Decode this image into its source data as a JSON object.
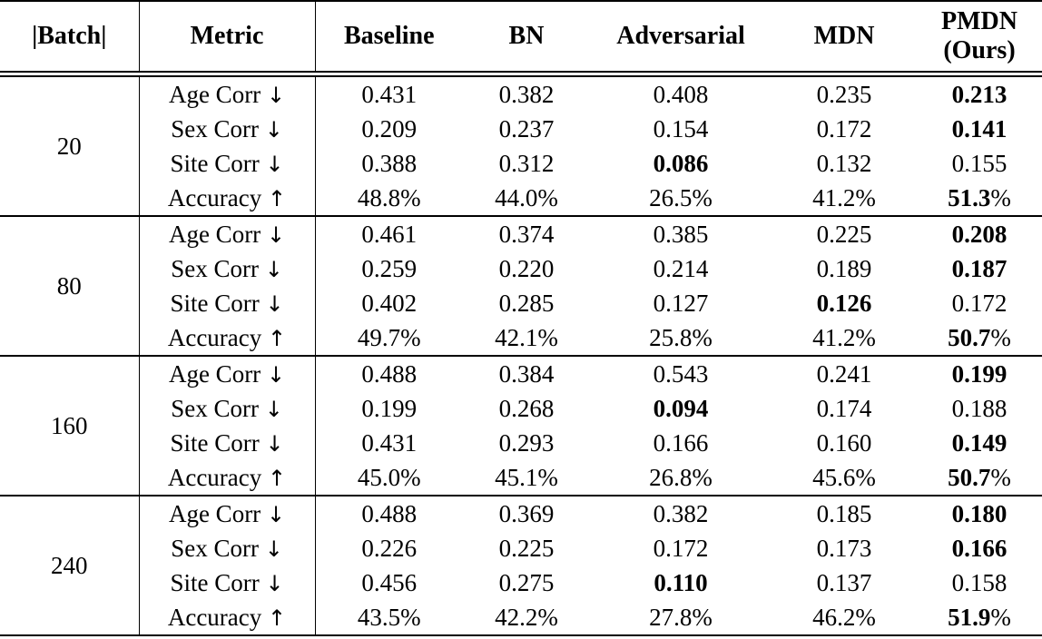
{
  "table": {
    "header": {
      "batch": "|Batch|",
      "metric": "Metric",
      "methods": [
        "Baseline",
        "BN",
        "Adversarial",
        "MDN",
        "PMDN (Ours)"
      ]
    },
    "icons": {
      "down_arrow": "↓",
      "up_arrow": "↑"
    },
    "groups": [
      {
        "batch": "20",
        "rows": [
          {
            "metric": "Age Corr",
            "dir": "down",
            "cells": [
              {
                "v": "0.431"
              },
              {
                "v": "0.382"
              },
              {
                "v": "0.408"
              },
              {
                "v": "0.235"
              },
              {
                "v": "0.213",
                "b": true
              }
            ]
          },
          {
            "metric": "Sex Corr",
            "dir": "down",
            "cells": [
              {
                "v": "0.209"
              },
              {
                "v": "0.237"
              },
              {
                "v": "0.154"
              },
              {
                "v": "0.172"
              },
              {
                "v": "0.141",
                "b": true
              }
            ]
          },
          {
            "metric": "Site Corr",
            "dir": "down",
            "cells": [
              {
                "v": "0.388"
              },
              {
                "v": "0.312"
              },
              {
                "v": "0.086",
                "b": true
              },
              {
                "v": "0.132"
              },
              {
                "v": "0.155"
              }
            ]
          },
          {
            "metric": "Accuracy",
            "dir": "up",
            "cells": [
              {
                "v": "48.8",
                "s": "%"
              },
              {
                "v": "44.0",
                "s": "%"
              },
              {
                "v": "26.5",
                "s": "%"
              },
              {
                "v": "41.2",
                "s": "%"
              },
              {
                "v": "51.3",
                "s": "%",
                "b": true
              }
            ]
          }
        ]
      },
      {
        "batch": "80",
        "rows": [
          {
            "metric": "Age Corr",
            "dir": "down",
            "cells": [
              {
                "v": "0.461"
              },
              {
                "v": "0.374"
              },
              {
                "v": "0.385"
              },
              {
                "v": "0.225"
              },
              {
                "v": "0.208",
                "b": true
              }
            ]
          },
          {
            "metric": "Sex Corr",
            "dir": "down",
            "cells": [
              {
                "v": "0.259"
              },
              {
                "v": "0.220"
              },
              {
                "v": "0.214"
              },
              {
                "v": "0.189"
              },
              {
                "v": "0.187",
                "b": true
              }
            ]
          },
          {
            "metric": "Site Corr",
            "dir": "down",
            "cells": [
              {
                "v": "0.402"
              },
              {
                "v": "0.285"
              },
              {
                "v": "0.127"
              },
              {
                "v": "0.126",
                "b": true
              },
              {
                "v": "0.172"
              }
            ]
          },
          {
            "metric": "Accuracy",
            "dir": "up",
            "cells": [
              {
                "v": "49.7",
                "s": "%"
              },
              {
                "v": "42.1",
                "s": "%"
              },
              {
                "v": "25.8",
                "s": "%"
              },
              {
                "v": "41.2",
                "s": "%"
              },
              {
                "v": "50.7",
                "s": "%",
                "b": true
              }
            ]
          }
        ]
      },
      {
        "batch": "160",
        "rows": [
          {
            "metric": "Age Corr",
            "dir": "down",
            "cells": [
              {
                "v": "0.488"
              },
              {
                "v": "0.384"
              },
              {
                "v": "0.543"
              },
              {
                "v": "0.241"
              },
              {
                "v": "0.199",
                "b": true
              }
            ]
          },
          {
            "metric": "Sex Corr",
            "dir": "down",
            "cells": [
              {
                "v": "0.199"
              },
              {
                "v": "0.268"
              },
              {
                "v": "0.094",
                "b": true
              },
              {
                "v": "0.174"
              },
              {
                "v": "0.188"
              }
            ]
          },
          {
            "metric": "Site Corr",
            "dir": "down",
            "cells": [
              {
                "v": "0.431"
              },
              {
                "v": "0.293"
              },
              {
                "v": "0.166"
              },
              {
                "v": "0.160"
              },
              {
                "v": "0.149",
                "b": true
              }
            ]
          },
          {
            "metric": "Accuracy",
            "dir": "up",
            "cells": [
              {
                "v": "45.0",
                "s": "%"
              },
              {
                "v": "45.1",
                "s": "%"
              },
              {
                "v": "26.8",
                "s": "%"
              },
              {
                "v": "45.6",
                "s": "%"
              },
              {
                "v": "50.7",
                "s": "%",
                "b": true
              }
            ]
          }
        ]
      },
      {
        "batch": "240",
        "rows": [
          {
            "metric": "Age Corr",
            "dir": "down",
            "cells": [
              {
                "v": "0.488"
              },
              {
                "v": "0.369"
              },
              {
                "v": "0.382"
              },
              {
                "v": "0.185"
              },
              {
                "v": "0.180",
                "b": true
              }
            ]
          },
          {
            "metric": "Sex Corr",
            "dir": "down",
            "cells": [
              {
                "v": "0.226"
              },
              {
                "v": "0.225"
              },
              {
                "v": "0.172"
              },
              {
                "v": "0.173"
              },
              {
                "v": "0.166",
                "b": true
              }
            ]
          },
          {
            "metric": "Site Corr",
            "dir": "down",
            "cells": [
              {
                "v": "0.456"
              },
              {
                "v": "0.275"
              },
              {
                "v": "0.110",
                "b": true
              },
              {
                "v": "0.137"
              },
              {
                "v": "0.158"
              }
            ]
          },
          {
            "metric": "Accuracy",
            "dir": "up",
            "cells": [
              {
                "v": "43.5",
                "s": "%"
              },
              {
                "v": "42.2",
                "s": "%"
              },
              {
                "v": "27.8",
                "s": "%"
              },
              {
                "v": "46.2",
                "s": "%"
              },
              {
                "v": "51.9",
                "s": "%",
                "b": true
              }
            ]
          }
        ]
      }
    ]
  }
}
